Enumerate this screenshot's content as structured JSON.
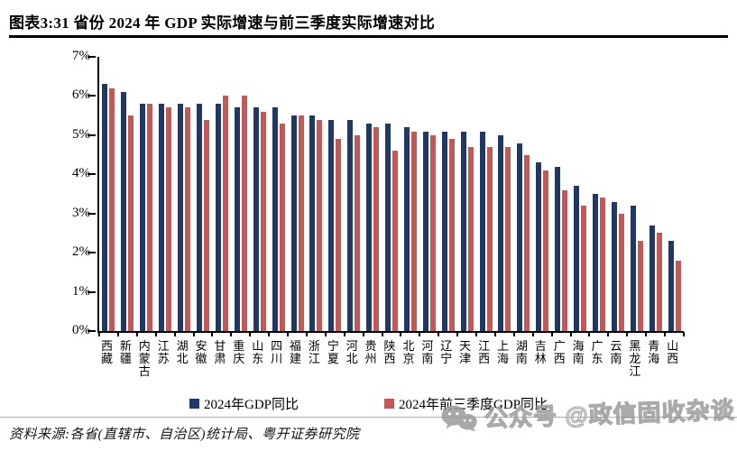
{
  "header": {
    "title": "图表3:31 省份 2024 年 GDP 实际增速与前三季度实际增速对比"
  },
  "chart_data": {
    "type": "bar",
    "title": "31 省份 2024 年 GDP 实际增速与前三季度实际增速对比",
    "categories": [
      "西藏",
      "新疆",
      "内蒙古",
      "江苏",
      "湖北",
      "安徽",
      "甘肃",
      "重庆",
      "山东",
      "四川",
      "福建",
      "浙江",
      "宁夏",
      "河北",
      "贵州",
      "陕西",
      "北京",
      "河南",
      "辽宁",
      "天津",
      "江西",
      "上海",
      "湖南",
      "吉林",
      "广西",
      "海南",
      "广东",
      "云南",
      "黑龙江",
      "青海",
      "山西"
    ],
    "series": [
      {
        "name": "2024年GDP同比",
        "color": "#1f3864",
        "values": [
          6.3,
          6.1,
          5.8,
          5.8,
          5.8,
          5.8,
          5.8,
          5.7,
          5.7,
          5.7,
          5.5,
          5.5,
          5.4,
          5.4,
          5.3,
          5.3,
          5.2,
          5.1,
          5.1,
          5.1,
          5.1,
          5.0,
          4.8,
          4.3,
          4.2,
          3.7,
          3.5,
          3.3,
          3.2,
          2.7,
          2.3
        ]
      },
      {
        "name": "2024年前三季度GDP同比",
        "color": "#c05a58",
        "values": [
          6.2,
          5.5,
          5.8,
          5.7,
          5.7,
          5.4,
          6.0,
          6.0,
          5.6,
          5.3,
          5.5,
          5.4,
          4.9,
          5.0,
          5.2,
          4.6,
          5.1,
          5.0,
          4.9,
          4.7,
          4.7,
          4.7,
          4.5,
          4.1,
          3.6,
          3.2,
          3.4,
          3.0,
          2.3,
          2.5,
          1.8
        ]
      }
    ],
    "ylim": [
      0,
      7
    ],
    "y_ticks": [
      "0%",
      "1%",
      "2%",
      "3%",
      "4%",
      "5%",
      "6%",
      "7%"
    ],
    "xlabel": "",
    "ylabel": "",
    "grid": false,
    "legend_position": "bottom"
  },
  "footer": {
    "source": "资料来源:各省(直辖市、自治区)统计局、粤开证券研究院"
  },
  "watermark": {
    "icon": "wechat-icon",
    "text": "公众号 @政信固收杂谈"
  }
}
